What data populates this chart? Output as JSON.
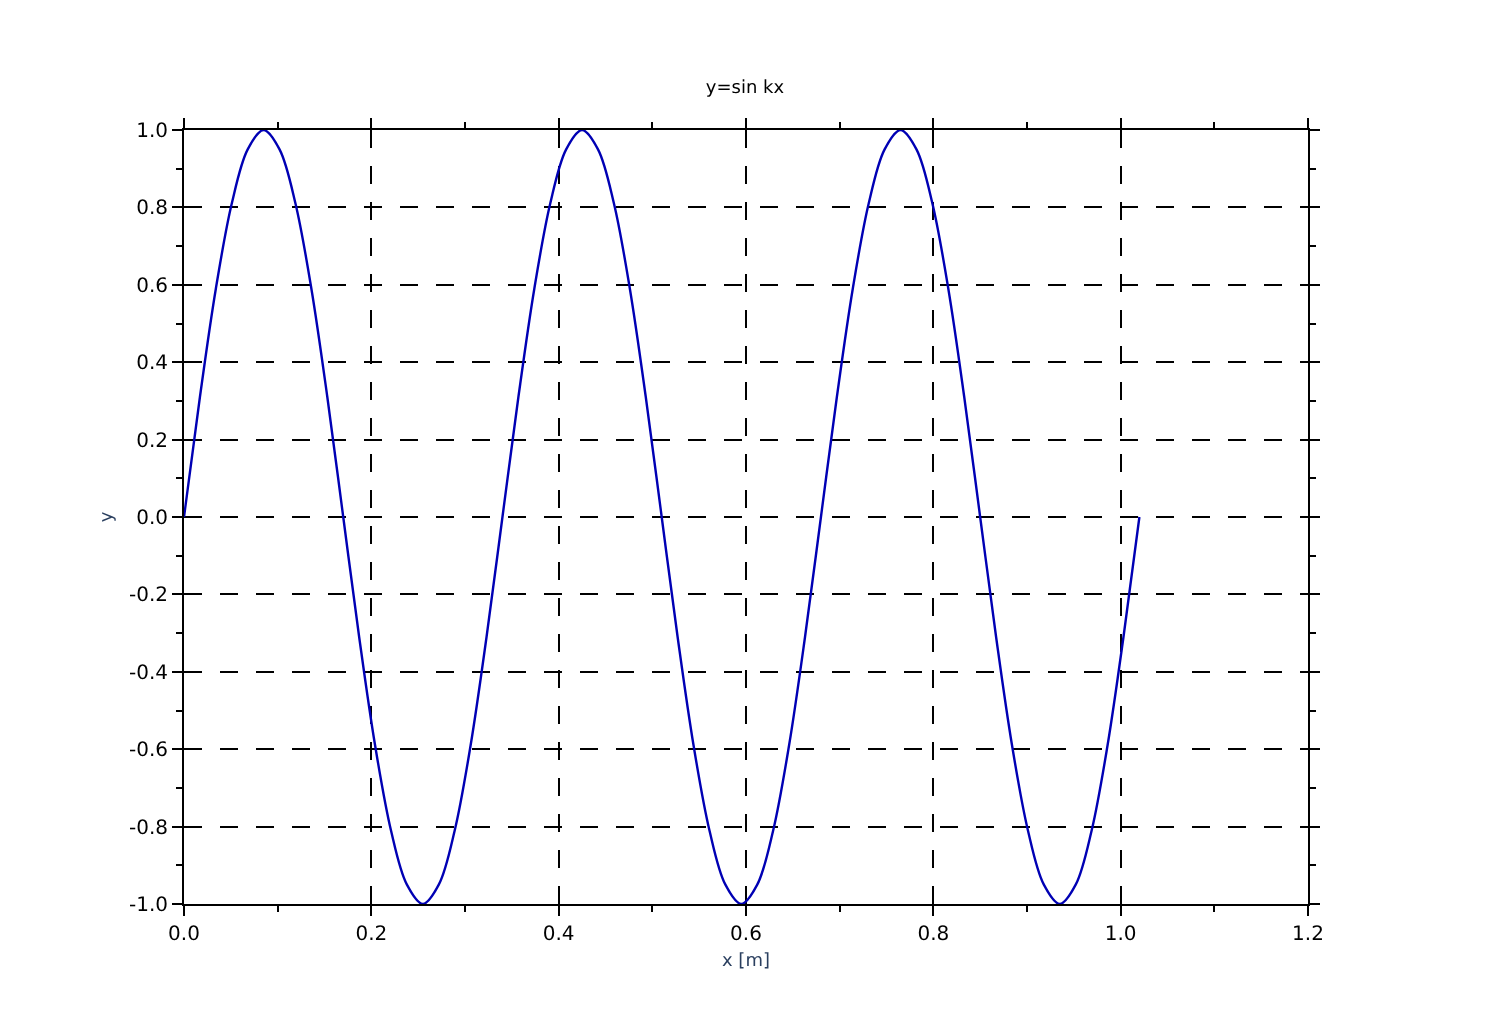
{
  "chart_data": {
    "type": "line",
    "title": "y=sin kx",
    "xlabel": "x [m]",
    "ylabel": "y",
    "x": [
      0,
      0.017,
      0.034,
      0.051,
      0.068,
      0.085,
      0.102,
      0.119,
      0.136,
      0.153,
      0.17,
      0.187,
      0.204,
      0.221,
      0.238,
      0.255,
      0.272,
      0.289,
      0.306,
      0.323,
      0.34,
      0.357,
      0.374,
      0.391,
      0.408,
      0.425,
      0.442,
      0.459,
      0.476,
      0.493,
      0.51,
      0.527,
      0.544,
      0.561,
      0.578,
      0.595,
      0.612,
      0.629,
      0.646,
      0.663,
      0.68,
      0.697,
      0.714,
      0.731,
      0.748,
      0.765,
      0.782,
      0.799,
      0.816,
      0.833,
      0.85,
      0.867,
      0.884,
      0.901,
      0.918,
      0.935,
      0.952,
      0.969,
      0.986,
      1.003,
      1.02
    ],
    "series": [
      {
        "color": "#0000b4",
        "values": [
          0,
          0.31,
          0.59,
          0.81,
          0.95,
          1,
          0.95,
          0.81,
          0.59,
          0.31,
          0,
          -0.31,
          -0.59,
          -0.81,
          -0.95,
          -1,
          -0.95,
          -0.81,
          -0.59,
          -0.31,
          0,
          0.31,
          0.59,
          0.81,
          0.95,
          1,
          0.95,
          0.81,
          0.59,
          0.31,
          0,
          -0.31,
          -0.59,
          -0.81,
          -0.95,
          -1,
          -0.95,
          -0.81,
          -0.59,
          -0.31,
          0,
          0.31,
          0.59,
          0.81,
          0.95,
          1,
          0.95,
          0.81,
          0.59,
          0.31,
          0,
          -0.31,
          -0.59,
          -0.81,
          -0.95,
          -1,
          -0.95,
          -0.81,
          -0.59,
          -0.31,
          0
        ]
      }
    ],
    "xlim": [
      0,
      1.2
    ],
    "xticks": [
      {
        "value": 0,
        "label": "0.0"
      },
      0.2,
      0.4,
      0.6,
      0.8,
      {
        "value": 1,
        "label": "1.0"
      },
      1.2
    ],
    "ylim": [
      -1,
      1
    ],
    "yticks": [
      {
        "value": -1,
        "label": "-1.0"
      },
      -0.8,
      -0.6,
      -0.4,
      -0.2,
      {
        "value": 0,
        "label": "0.0"
      },
      0.2,
      0.4,
      0.6,
      0.8,
      {
        "value": 1,
        "label": "1.0"
      }
    ],
    "grid": true,
    "legend": false,
    "marker": "none",
    "line_style": "solid"
  }
}
